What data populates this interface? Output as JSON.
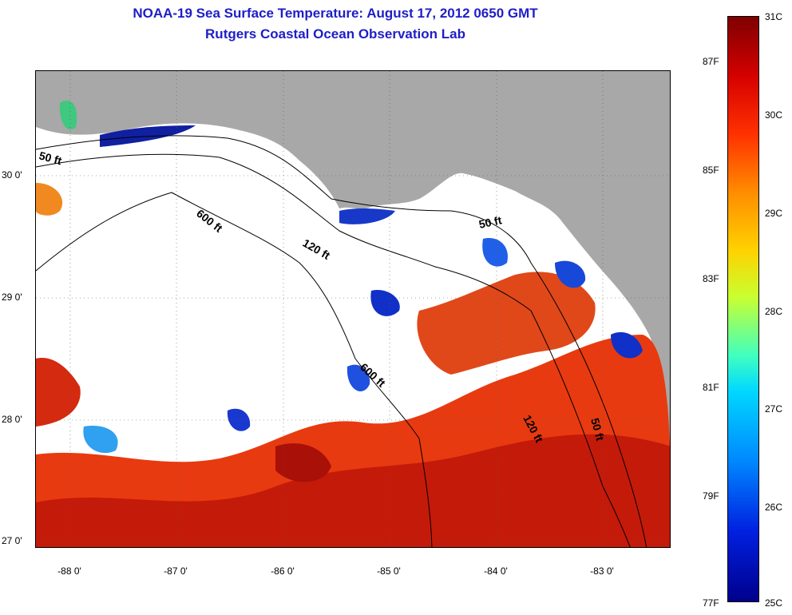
{
  "header": {
    "title": "NOAA-19 Sea Surface Temperature:  August 17, 2012 0650 GMT",
    "subtitle": "Rutgers Coastal Ocean Observation Lab"
  },
  "map": {
    "lat_labels": [
      "30 0'",
      "29 0'",
      "28 0'",
      "27 0'"
    ],
    "lon_labels": [
      "-88 0'",
      "-87 0'",
      "-86 0'",
      "-85 0'",
      "-84 0'",
      "-83 0'"
    ],
    "contours": [
      "50 ft",
      "600 ft",
      "120 ft",
      "50 ft",
      "600 ft",
      "120 ft",
      "50 ft"
    ]
  },
  "colorbar": {
    "celsius": [
      "31C",
      "30C",
      "29C",
      "28C",
      "27C",
      "26C",
      "25C"
    ],
    "fahrenheit": [
      "87F",
      "85F",
      "83F",
      "81F",
      "79F",
      "77F"
    ]
  },
  "colors": {
    "land": "#a8a8a8",
    "ocean_no_data": "#ffffff",
    "title": "#1e1ec8"
  }
}
